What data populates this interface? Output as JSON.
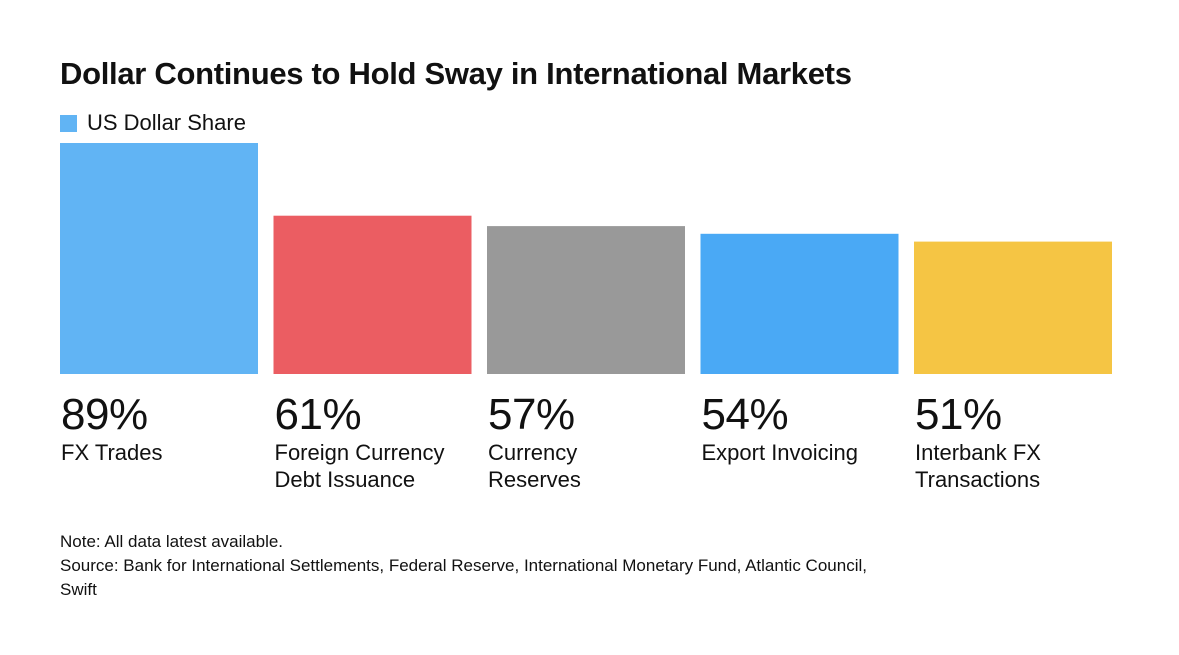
{
  "title": "Dollar Continues to Hold Sway in International Markets",
  "legend": {
    "label": "US Dollar Share",
    "color": "#61b4f4"
  },
  "chart_data": {
    "type": "bar",
    "title": "Dollar Continues to Hold Sway in International Markets",
    "series": [
      {
        "name": "US Dollar Share",
        "values": [
          89,
          61,
          57,
          54,
          51
        ]
      }
    ],
    "categories": [
      "FX Trades",
      "Foreign Currency Debt Issuance",
      "Currency Reserves",
      "Export Invoicing",
      "Interbank FX Transactions"
    ],
    "value_labels": [
      "89%",
      "61%",
      "57%",
      "54%",
      "51%"
    ],
    "category_lines": [
      [
        "FX Trades"
      ],
      [
        "Foreign Currency",
        "Debt Issuance"
      ],
      [
        "Currency",
        "Reserves"
      ],
      [
        "Export Invoicing"
      ],
      [
        "Interbank FX",
        "Transactions"
      ]
    ],
    "colors": [
      "#61b4f4",
      "#eb5d62",
      "#999999",
      "#4aa9f5",
      "#f5c544"
    ],
    "unit": "%",
    "grid": false,
    "legend_position": "top-left"
  },
  "notes": {
    "note": "Note: All data latest available.",
    "source_line1": "Source: Bank for International Settlements, Federal Reserve, International Monetary Fund, Atlantic Council,",
    "source_line2": "Swift"
  }
}
